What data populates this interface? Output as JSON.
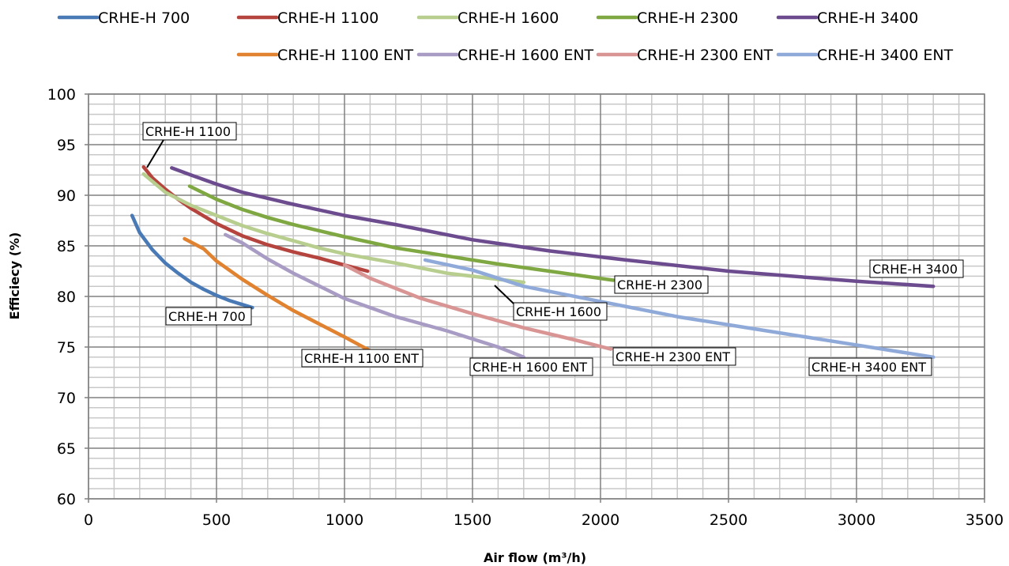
{
  "chart_data": {
    "type": "line",
    "xlabel": "Air flow (m³/h)",
    "ylabel": "Efficiecy (%)",
    "xlim": [
      0,
      3500
    ],
    "ylim": [
      60,
      100
    ],
    "x_ticks": [
      0,
      500,
      1000,
      1500,
      2000,
      2500,
      3000,
      3500
    ],
    "y_ticks": [
      60,
      65,
      70,
      75,
      80,
      85,
      90,
      95,
      100
    ],
    "grid": true,
    "legend_position": "top",
    "series": [
      {
        "name": "CRHE-H 700",
        "color": "#4a7ab5",
        "points": [
          [
            170,
            88
          ],
          [
            200,
            86.3
          ],
          [
            250,
            84.6
          ],
          [
            300,
            83.3
          ],
          [
            350,
            82.3
          ],
          [
            400,
            81.4
          ],
          [
            450,
            80.7
          ],
          [
            500,
            80.1
          ],
          [
            550,
            79.6
          ],
          [
            600,
            79.2
          ],
          [
            640,
            78.9
          ]
        ]
      },
      {
        "name": "CRHE-H 1100",
        "color": "#b5443e",
        "points": [
          [
            215,
            92.8
          ],
          [
            250,
            91.7
          ],
          [
            300,
            90.6
          ],
          [
            350,
            89.6
          ],
          [
            400,
            88.7
          ],
          [
            500,
            87.2
          ],
          [
            600,
            86
          ],
          [
            700,
            85.1
          ],
          [
            800,
            84.4
          ],
          [
            900,
            83.8
          ],
          [
            1000,
            83.1
          ],
          [
            1090,
            82.5
          ]
        ]
      },
      {
        "name": "CRHE-H 1600",
        "color": "#b7ce8e",
        "points": [
          [
            215,
            92.1
          ],
          [
            300,
            90.3
          ],
          [
            400,
            89
          ],
          [
            500,
            88
          ],
          [
            600,
            87
          ],
          [
            700,
            86.2
          ],
          [
            800,
            85.5
          ],
          [
            900,
            84.8
          ],
          [
            1000,
            84.2
          ],
          [
            1200,
            83.3
          ],
          [
            1400,
            82.3
          ],
          [
            1700,
            81.4
          ]
        ]
      },
      {
        "name": "CRHE-H 2300",
        "color": "#7fa843",
        "points": [
          [
            395,
            90.9
          ],
          [
            500,
            89.6
          ],
          [
            600,
            88.6
          ],
          [
            700,
            87.8
          ],
          [
            800,
            87.1
          ],
          [
            900,
            86.5
          ],
          [
            1000,
            85.9
          ],
          [
            1200,
            84.8
          ],
          [
            1400,
            84
          ],
          [
            1600,
            83.2
          ],
          [
            1800,
            82.5
          ],
          [
            2050,
            81.6
          ]
        ]
      },
      {
        "name": "CRHE-H 3400",
        "color": "#6c4c8f",
        "points": [
          [
            325,
            92.7
          ],
          [
            400,
            92
          ],
          [
            500,
            91.1
          ],
          [
            600,
            90.3
          ],
          [
            800,
            89.1
          ],
          [
            1000,
            88
          ],
          [
            1200,
            87.1
          ],
          [
            1500,
            85.6
          ],
          [
            1800,
            84.5
          ],
          [
            2100,
            83.6
          ],
          [
            2500,
            82.5
          ],
          [
            2800,
            81.9
          ],
          [
            3000,
            81.5
          ],
          [
            3300,
            81
          ]
        ]
      },
      {
        "name": "CRHE-H 1100 ENT",
        "color": "#e0822f",
        "points": [
          [
            375,
            85.7
          ],
          [
            450,
            84.7
          ],
          [
            500,
            83.5
          ],
          [
            600,
            81.7
          ],
          [
            700,
            80.1
          ],
          [
            800,
            78.6
          ],
          [
            900,
            77.3
          ],
          [
            1000,
            76
          ],
          [
            1095,
            74.7
          ]
        ]
      },
      {
        "name": "CRHE-H 1600 ENT",
        "color": "#a89cc4",
        "points": [
          [
            535,
            86.1
          ],
          [
            600,
            85.3
          ],
          [
            700,
            83.7
          ],
          [
            800,
            82.3
          ],
          [
            1000,
            79.8
          ],
          [
            1200,
            78
          ],
          [
            1400,
            76.6
          ],
          [
            1600,
            75
          ],
          [
            1700,
            74
          ]
        ]
      },
      {
        "name": "CRHE-H 2300 ENT",
        "color": "#d99594",
        "points": [
          [
            1000,
            83.1
          ],
          [
            1100,
            81.8
          ],
          [
            1300,
            79.8
          ],
          [
            1500,
            78.3
          ],
          [
            1700,
            76.9
          ],
          [
            1900,
            75.7
          ],
          [
            2040,
            74.8
          ]
        ]
      },
      {
        "name": "CRHE-H 3400 ENT",
        "color": "#8faad9",
        "points": [
          [
            1315,
            83.6
          ],
          [
            1500,
            82.6
          ],
          [
            1700,
            81
          ],
          [
            2000,
            79.5
          ],
          [
            2300,
            78
          ],
          [
            2600,
            76.8
          ],
          [
            2900,
            75.6
          ],
          [
            3300,
            74
          ]
        ]
      }
    ],
    "annotations": [
      {
        "text": "CRHE-H 1100"
      },
      {
        "text": "CRHE-H 700"
      },
      {
        "text": "CRHE-H 1100 ENT"
      },
      {
        "text": "CRHE-H 1600 ENT"
      },
      {
        "text": "CRHE-H 1600"
      },
      {
        "text": "CRHE-H 2300"
      },
      {
        "text": "CRHE-H 2300 ENT"
      },
      {
        "text": "CRHE-H 3400"
      },
      {
        "text": "CRHE-H 3400 ENT"
      }
    ]
  }
}
